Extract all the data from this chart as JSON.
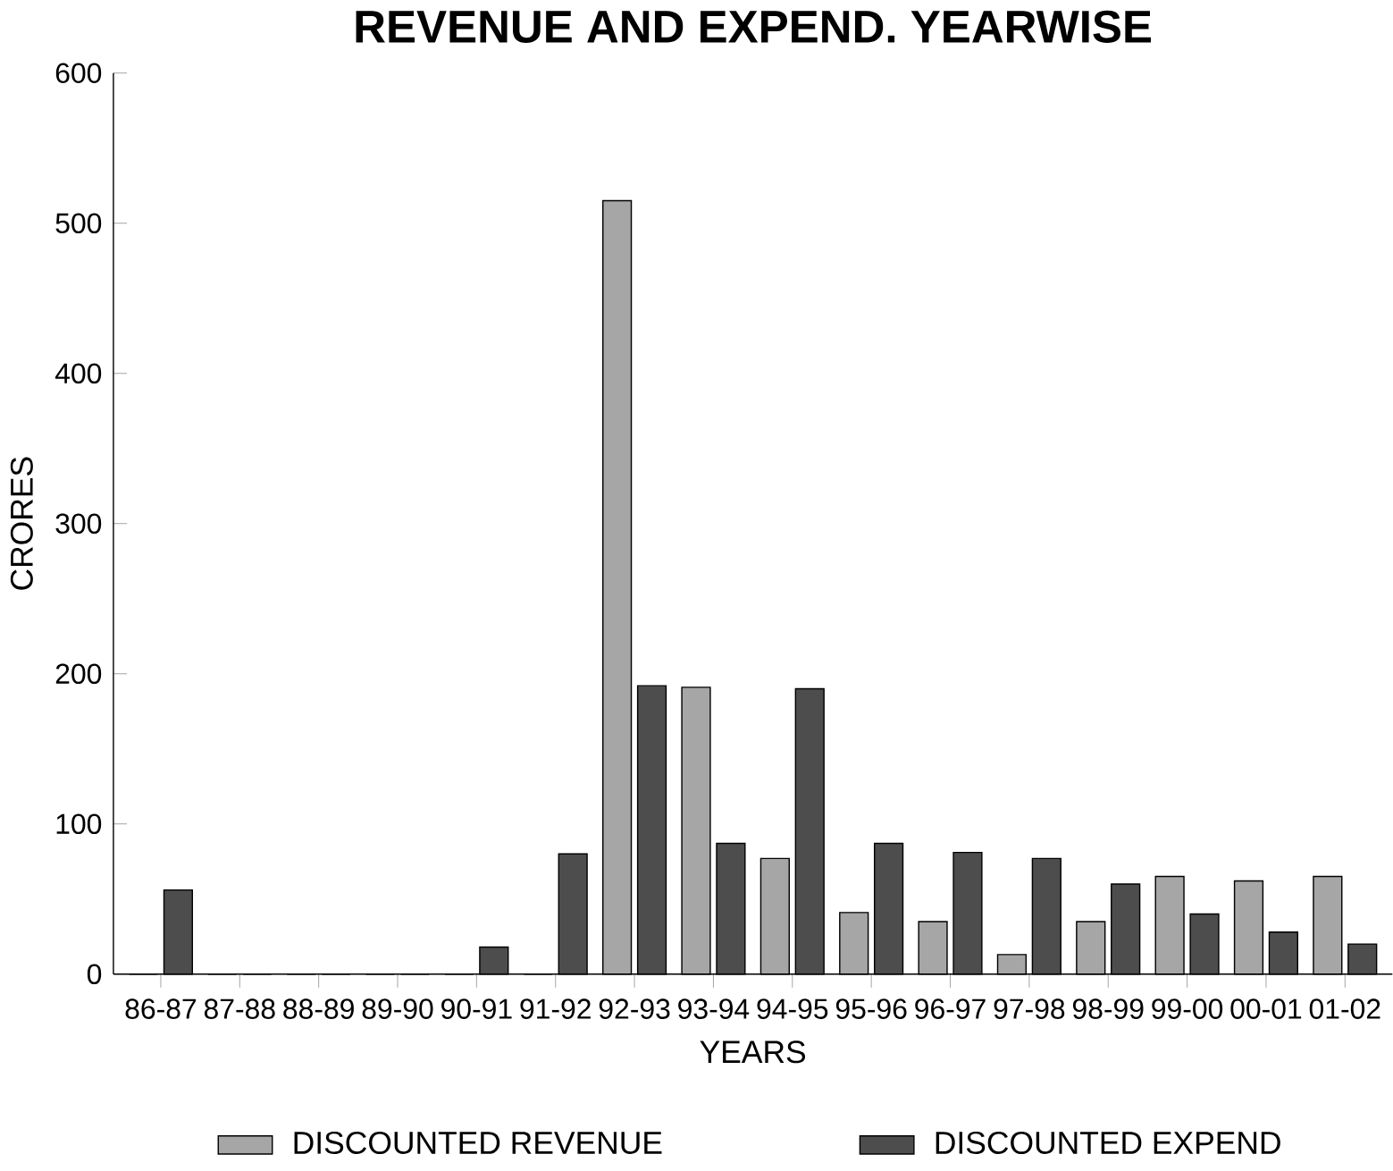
{
  "chart_data": {
    "type": "bar",
    "title": "REVENUE AND EXPEND. YEARWISE",
    "xlabel": "YEARS",
    "ylabel": "CRORES",
    "categories": [
      "86-87",
      "87-88",
      "88-89",
      "89-90",
      "90-91",
      "91-92",
      "92-93",
      "93-94",
      "94-95",
      "95-96",
      "96-97",
      "97-98",
      "98-99",
      "99-00",
      "00-01",
      "01-02"
    ],
    "series": [
      {
        "name": "DISCOUNTED REVENUE",
        "color": "#a6a6a6",
        "values": [
          0,
          0,
          0,
          0,
          0,
          0,
          515,
          191,
          77,
          41,
          35,
          13,
          35,
          65,
          62,
          65
        ]
      },
      {
        "name": "DISCOUNTED EXPEND",
        "color": "#4d4d4d",
        "values": [
          56,
          0,
          0,
          0,
          18,
          80,
          192,
          87,
          190,
          87,
          81,
          77,
          60,
          40,
          28,
          20
        ]
      }
    ],
    "ylim": [
      0,
      600
    ],
    "yticks": [
      0,
      100,
      200,
      300,
      400,
      500,
      600
    ],
    "grid": false,
    "legend": "bottom"
  }
}
